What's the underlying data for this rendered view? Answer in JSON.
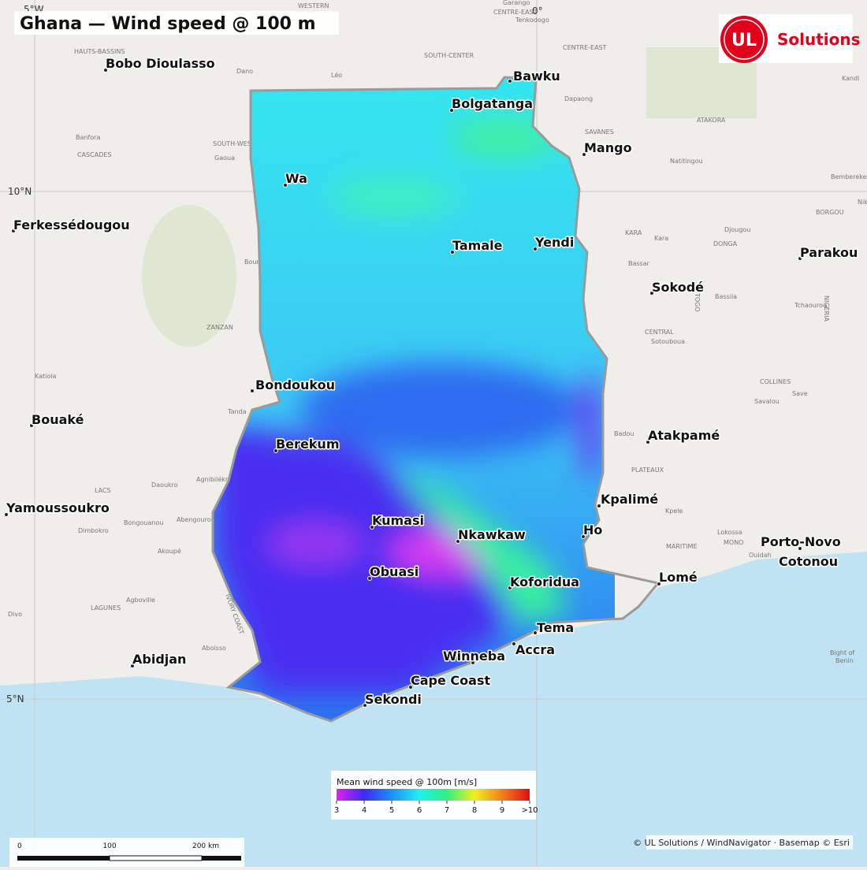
{
  "title": "Ghana — Wind speed @ 100 m",
  "logo": {
    "mark": "UL",
    "text": "Solutions"
  },
  "graticule_labels": [
    "5°W",
    "0°",
    "10°N",
    "5°N"
  ],
  "cities": [
    "Bobo Dioulasso",
    "Bawku",
    "Bolgatanga",
    "Mango",
    "Wa",
    "Ferkessédougou",
    "Tamale",
    "Yendi",
    "Parakou",
    "Sokodé",
    "Bondoukou",
    "Bouaké",
    "Berekum",
    "Atakpamé",
    "Kpalimé",
    "Yamoussoukro",
    "Kumasi",
    "Ho",
    "Nkawkaw",
    "Porto-Novo",
    "Cotonou",
    "Obuasi",
    "Lomé",
    "Koforidua",
    "Tema",
    "Accra",
    "Abidjan",
    "Winneba",
    "Cape Coast",
    "Sekondi"
  ],
  "basemap_labels": [
    "WESTERN",
    "Garango",
    "CENTRE-EAST",
    "Tenkodogo",
    "SOUTH-CENTER",
    "CENTRE-EAST",
    "HAUTS-BASSINS",
    "Dano",
    "Léo",
    "Dapaong",
    "Banfora",
    "CASCADES",
    "SOUTH-WEST",
    "Gaoua",
    "SAVANES",
    "ATAKORA",
    "Natitingou",
    "Kandi",
    "Bembereke",
    "Nikki",
    "BORGOU",
    "KARA",
    "Kara",
    "Djougou",
    "DONGA",
    "Bassar",
    "Bassila",
    "Tchaourou",
    "CENTRAL",
    "Sotouboua",
    "Bouna",
    "ZANZAN",
    "Katiola",
    "Tanda",
    "COLLINES",
    "Save",
    "Savalou",
    "Badou",
    "PLATEAUX",
    "Daoukro",
    "Agnibilékrou",
    "LACS",
    "Abengourou",
    "Bongouanou",
    "Dimbokro",
    "Akoupé",
    "Kpele",
    "MARITIME",
    "Lokossa",
    "MONO",
    "Ouidah",
    "Agboville",
    "LAGUNES",
    "Divo",
    "Aboisso",
    "Bight of",
    "Benin",
    "IVORY COAST",
    "TOGO",
    "NIGERIA"
  ],
  "legend": {
    "title": "Mean wind speed @ 100m  [m/s]",
    "range": [
      3,
      10
    ],
    "ticks": [
      3,
      4,
      5,
      6,
      7,
      8,
      9,
      {
        "value": 10,
        "label": ">10"
      }
    ],
    "colors": [
      "#e020f0",
      "#3a2cf0",
      "#1e90f5",
      "#20f0f0",
      "#30f080",
      "#f0f020",
      "#f08020",
      "#e01010"
    ]
  },
  "scale_bar": {
    "labels": [
      "0",
      "100",
      "200 km"
    ]
  },
  "attribution": "© UL Solutions / WindNavigator · Basemap © Esri"
}
